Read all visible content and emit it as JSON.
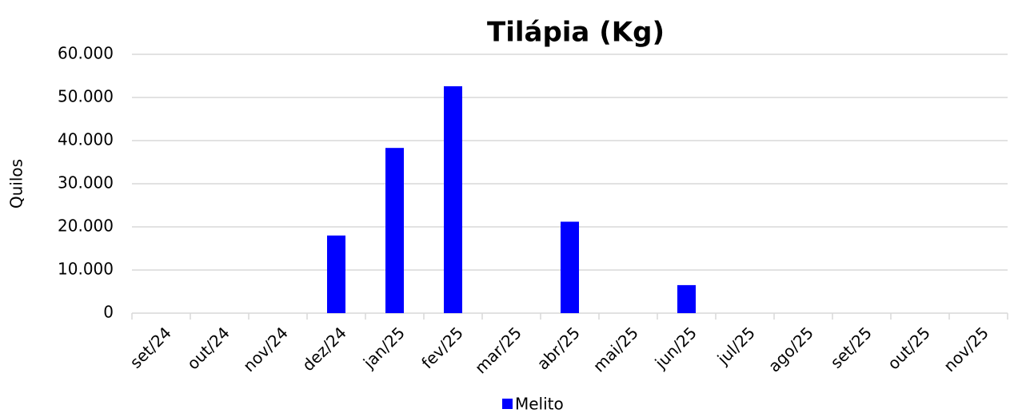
{
  "chart_data": {
    "type": "bar",
    "title": "Tilápia (Kg)",
    "y_label": "Quilos",
    "categories": [
      "set/24",
      "out/24",
      "nov/24",
      "dez/24",
      "jan/25",
      "fev/25",
      "mar/25",
      "abr/25",
      "mai/25",
      "jun/25",
      "jul/25",
      "ago/25",
      "set/25",
      "out/25",
      "nov/25"
    ],
    "series": [
      {
        "name": "Melito",
        "color": "#0000ff",
        "values": [
          null,
          null,
          null,
          18000,
          38300,
          52600,
          null,
          21200,
          null,
          6500,
          null,
          null,
          null,
          null,
          null
        ]
      }
    ],
    "ylim": [
      0,
      60000
    ],
    "yticks": [
      0,
      {
        "value": 10000,
        "label": "10.000"
      },
      {
        "value": 20000,
        "label": "20.000"
      },
      {
        "value": 30000,
        "label": "30.000"
      },
      {
        "value": 40000,
        "label": "40.000"
      },
      {
        "value": 50000,
        "label": "50.000"
      },
      {
        "value": 60000,
        "label": "60.000"
      }
    ],
    "grid": true,
    "legend": "bottom"
  }
}
